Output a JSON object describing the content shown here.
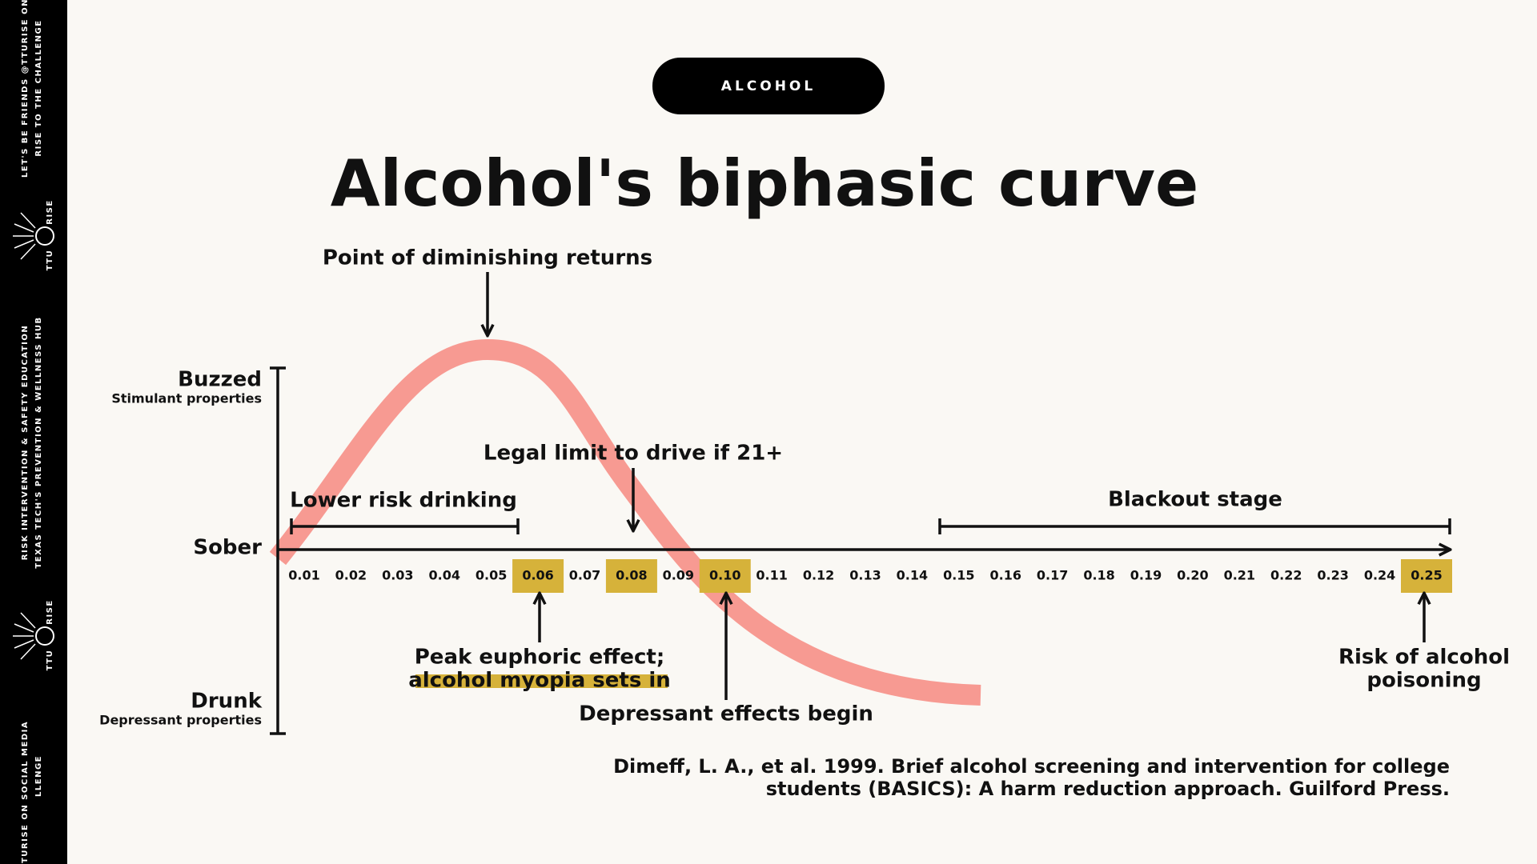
{
  "sidebar": {
    "top": [
      "LET'S BE FRIENDS @TTURISE ON",
      "RISE TO THE CHALLENGE"
    ],
    "middle": [
      "RISK INTERVENTION & SAFETY EDUCATION",
      "TEXAS TECH'S PREVENTION & WELLNESS HUB"
    ],
    "bottom": [
      "@TTURISE ON SOCIAL MEDIA",
      "LLENGE"
    ],
    "logo": [
      "RISE",
      "TTU"
    ]
  },
  "badge": "ALCOHOL",
  "title": "Alcohol's biphasic curve",
  "y_labels": {
    "top": {
      "label": "Buzzed",
      "sub": "Stimulant properties"
    },
    "middle": {
      "label": "Sober"
    },
    "bottom": {
      "label": "Drunk",
      "sub": "Depressant properties"
    }
  },
  "ticks": [
    {
      "label": "0.01"
    },
    {
      "label": "0.02"
    },
    {
      "label": "0.03"
    },
    {
      "label": "0.04"
    },
    {
      "label": "0.05"
    },
    {
      "label": "0.06",
      "highlighted": true
    },
    {
      "label": "0.07"
    },
    {
      "label": "0.08",
      "highlighted": true
    },
    {
      "label": "0.09"
    },
    {
      "label": "0.10",
      "highlighted": true
    },
    {
      "label": "0.11"
    },
    {
      "label": "0.12"
    },
    {
      "label": "0.13"
    },
    {
      "label": "0.14"
    },
    {
      "label": "0.15"
    },
    {
      "label": "0.16"
    },
    {
      "label": "0.17"
    },
    {
      "label": "0.18"
    },
    {
      "label": "0.19"
    },
    {
      "label": "0.20"
    },
    {
      "label": "0.21"
    },
    {
      "label": "0.22"
    },
    {
      "label": "0.23"
    },
    {
      "label": "0.24"
    },
    {
      "label": "0.25",
      "highlighted": true
    }
  ],
  "annotations": {
    "diminishing": "Point of diminishing returns",
    "lower_risk": "Lower risk drinking",
    "legal_limit": "Legal limit to drive if 21+",
    "blackout": "Blackout stage",
    "peak": [
      "Peak euphoric effect;",
      "alcohol myopia sets in"
    ],
    "depressant": "Depressant effects begin",
    "poisoning": [
      "Risk of alcohol",
      "poisoning"
    ]
  },
  "citation": [
    "Dimeff, L. A., et al. 1999. Brief alcohol screening and intervention for college",
    "students (BASICS): A harm reduction approach. Guilford Press."
  ]
}
